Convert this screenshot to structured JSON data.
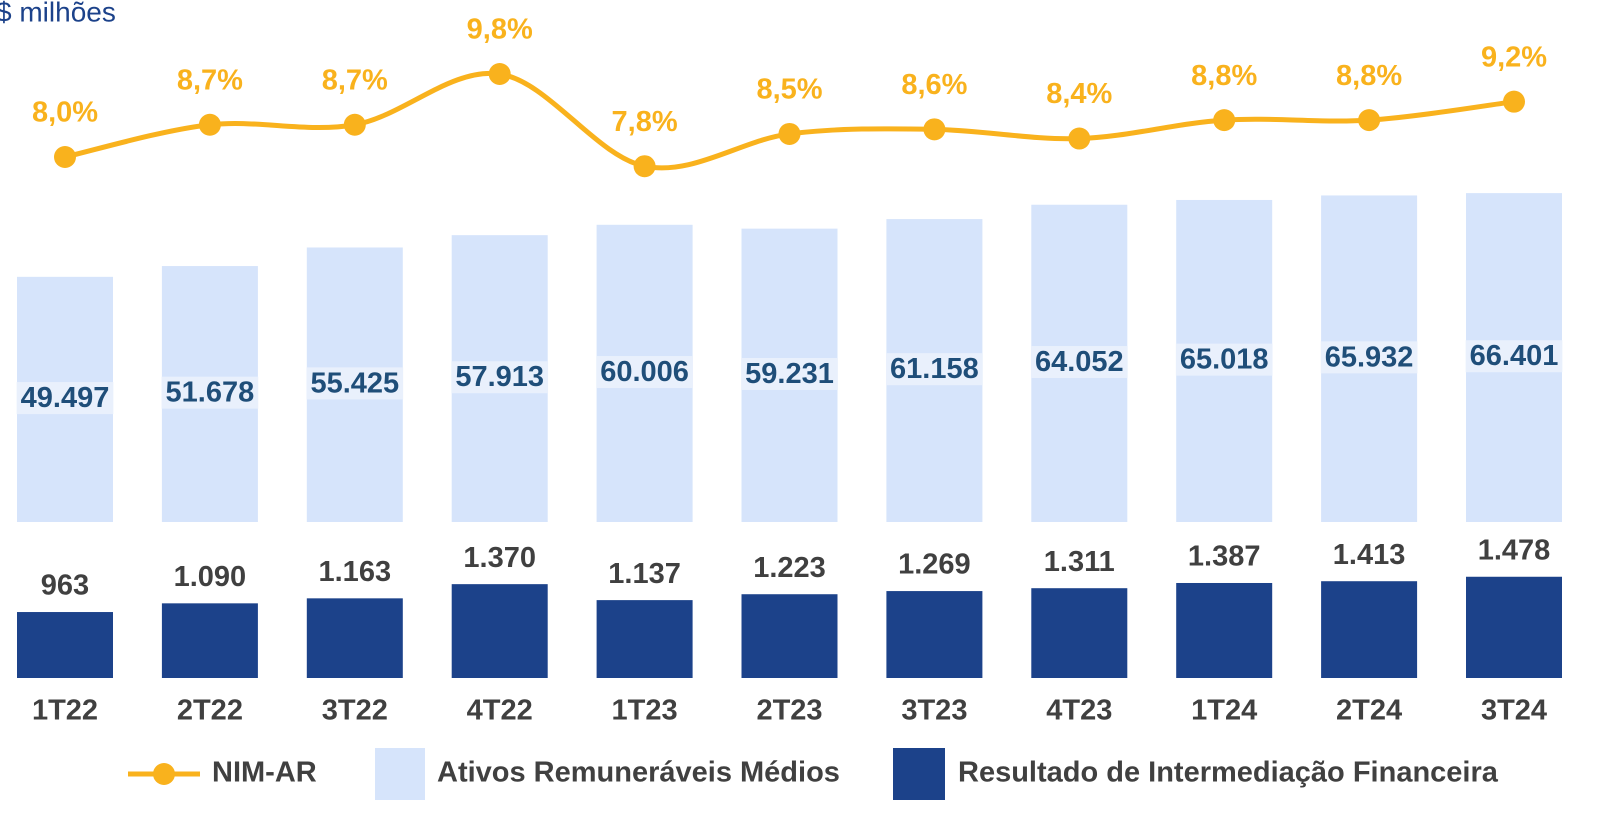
{
  "chart_data": {
    "type": "bar_line",
    "subtitle": "$ milhões",
    "categories": [
      "1T22",
      "2T22",
      "3T22",
      "4T22",
      "1T23",
      "2T23",
      "3T23",
      "4T23",
      "1T24",
      "2T24",
      "3T24"
    ],
    "series": [
      {
        "name": "NIM-AR",
        "type": "line",
        "color": "#f9b21d",
        "values": [
          8.0,
          8.7,
          8.7,
          9.8,
          7.8,
          8.5,
          8.6,
          8.4,
          8.8,
          8.8,
          9.2
        ],
        "value_labels": [
          "8,0%",
          "8,7%",
          "8,7%",
          "9,8%",
          "7,8%",
          "8,5%",
          "8,6%",
          "8,4%",
          "8,8%",
          "8,8%",
          "9,2%"
        ]
      },
      {
        "name": "Ativos Remuneráveis Médios",
        "type": "bar",
        "color": "#d6e4fb",
        "values": [
          49497,
          51678,
          55425,
          57913,
          60006,
          59231,
          61158,
          64052,
          65018,
          65932,
          66401
        ],
        "value_labels": [
          "49.497",
          "51.678",
          "55.425",
          "57.913",
          "60.006",
          "59.231",
          "61.158",
          "64.052",
          "65.018",
          "65.932",
          "66.401"
        ]
      },
      {
        "name": "Resultado de Intermediação Financeira",
        "type": "bar",
        "color": "#1c428a",
        "values": [
          963,
          1090,
          1163,
          1370,
          1137,
          1223,
          1269,
          1311,
          1387,
          1413,
          1478
        ],
        "value_labels": [
          "963",
          "1.090",
          "1.163",
          "1.370",
          "1.137",
          "1.223",
          "1.269",
          "1.311",
          "1.387",
          "1.413",
          "1.478"
        ]
      }
    ]
  }
}
